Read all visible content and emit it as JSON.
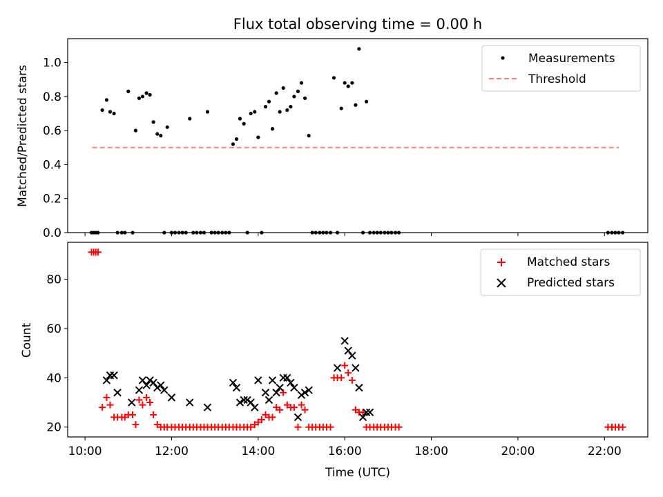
{
  "figure": {
    "title": "Flux total observing time = 0.00 h"
  },
  "chart_data": [
    {
      "type": "scatter",
      "title": "Flux total observing time = 0.00 h",
      "xlabel": "",
      "ylabel": "Matched/Predicted stars",
      "ylim": [
        0.0,
        1.14
      ],
      "yticks": [
        0.0,
        0.2,
        0.4,
        0.6,
        0.8,
        1.0
      ],
      "ytick_labels": [
        "0.0",
        "0.2",
        "0.4",
        "0.6",
        "0.8",
        "1.0"
      ],
      "xlim_hours": [
        9.6,
        23.0
      ],
      "x_unit": "hours UTC",
      "legend_position": "top-right",
      "legend": [
        "Measurements",
        "Threshold"
      ],
      "threshold": {
        "name": "Threshold",
        "value": 0.5,
        "x_start": 10.17,
        "x_end": 22.33,
        "color": "#ff7f7f",
        "style": "dashed"
      },
      "series": [
        {
          "name": "Measurements",
          "color": "#000000",
          "marker": "dot",
          "x": [
            10.15,
            10.2,
            10.25,
            10.3,
            10.4,
            10.5,
            10.58,
            10.67,
            10.75,
            10.85,
            10.92,
            11.0,
            11.1,
            11.17,
            11.25,
            11.33,
            11.42,
            11.5,
            11.58,
            11.67,
            11.75,
            11.83,
            11.9,
            12.0,
            12.08,
            12.17,
            12.25,
            12.33,
            12.42,
            12.5,
            12.58,
            12.67,
            12.75,
            12.83,
            12.92,
            13.0,
            13.08,
            13.17,
            13.25,
            13.33,
            13.42,
            13.5,
            13.58,
            13.67,
            13.75,
            13.83,
            13.92,
            14.0,
            14.08,
            14.17,
            14.25,
            14.33,
            14.42,
            14.5,
            14.58,
            14.67,
            14.75,
            14.83,
            14.92,
            15.0,
            15.08,
            15.17,
            15.25,
            15.33,
            15.42,
            15.5,
            15.58,
            15.67,
            15.75,
            15.83,
            15.92,
            16.0,
            16.08,
            16.17,
            16.25,
            16.33,
            16.42,
            16.5,
            16.58,
            16.67,
            16.75,
            16.83,
            16.92,
            17.0,
            17.08,
            17.17,
            17.25,
            22.08,
            22.17,
            22.25,
            22.33,
            22.42
          ],
          "y": [
            0.0,
            0.0,
            0.0,
            0.0,
            0.72,
            0.78,
            0.71,
            0.7,
            0.0,
            0.0,
            0.0,
            0.83,
            0.0,
            0.6,
            0.79,
            0.8,
            0.82,
            0.81,
            0.65,
            0.58,
            0.57,
            0.0,
            0.62,
            0.0,
            0.0,
            0.0,
            0.0,
            0.0,
            0.67,
            0.0,
            0.0,
            0.0,
            0.0,
            0.71,
            0.0,
            0.0,
            0.0,
            0.0,
            0.0,
            0.0,
            0.52,
            0.55,
            0.67,
            0.64,
            0.0,
            0.7,
            0.71,
            0.56,
            0.0,
            0.74,
            0.77,
            0.61,
            0.82,
            0.71,
            0.85,
            0.72,
            0.74,
            0.8,
            0.83,
            0.88,
            0.79,
            0.57,
            0.0,
            0.0,
            0.0,
            0.0,
            0.0,
            0.0,
            0.91,
            0.0,
            0.73,
            0.88,
            0.86,
            0.88,
            0.75,
            1.08,
            0.0,
            0.77,
            0.0,
            0.0,
            0.0,
            0.0,
            0.0,
            0.0,
            0.0,
            0.0,
            0.0,
            0.0,
            0.0,
            0.0,
            0.0,
            0.0
          ]
        }
      ]
    },
    {
      "type": "scatter",
      "title": "",
      "xlabel": "Time (UTC)",
      "ylabel": "Count",
      "ylim": [
        16.0,
        95.0
      ],
      "yticks": [
        20,
        40,
        60,
        80
      ],
      "ytick_labels": [
        "20",
        "40",
        "60",
        "80"
      ],
      "xlim_hours": [
        9.6,
        23.0
      ],
      "xticks_hours": [
        10,
        12,
        14,
        16,
        18,
        20,
        22
      ],
      "xtick_labels": [
        "10:00",
        "12:00",
        "14:00",
        "16:00",
        "18:00",
        "20:00",
        "22:00"
      ],
      "legend_position": "top-right",
      "legend": [
        "Matched stars",
        "Predicted stars"
      ],
      "series": [
        {
          "name": "Matched stars",
          "color": "#ff0000",
          "marker": "plus",
          "x": [
            10.15,
            10.2,
            10.25,
            10.3,
            10.4,
            10.5,
            10.58,
            10.67,
            10.75,
            10.85,
            10.92,
            11.0,
            11.1,
            11.17,
            11.25,
            11.33,
            11.42,
            11.5,
            11.58,
            11.67,
            11.75,
            11.83,
            11.9,
            12.0,
            12.08,
            12.17,
            12.25,
            12.33,
            12.42,
            12.5,
            12.58,
            12.67,
            12.75,
            12.83,
            12.92,
            13.0,
            13.08,
            13.17,
            13.25,
            13.33,
            13.42,
            13.5,
            13.58,
            13.67,
            13.75,
            13.83,
            13.92,
            14.0,
            14.08,
            14.17,
            14.25,
            14.33,
            14.42,
            14.5,
            14.58,
            14.67,
            14.75,
            14.83,
            14.92,
            15.0,
            15.08,
            15.17,
            15.25,
            15.33,
            15.42,
            15.5,
            15.58,
            15.67,
            15.75,
            15.83,
            15.92,
            16.0,
            16.08,
            16.17,
            16.25,
            16.33,
            16.42,
            16.5,
            16.58,
            16.67,
            16.75,
            16.83,
            16.92,
            17.0,
            17.08,
            17.17,
            17.25,
            22.08,
            22.17,
            22.25,
            22.33,
            22.42
          ],
          "y": [
            91,
            91,
            91,
            91,
            28,
            32,
            29,
            24,
            24,
            24,
            24,
            25,
            25,
            21,
            31,
            29,
            32,
            30,
            25,
            21,
            20,
            20,
            20,
            20,
            20,
            20,
            20,
            20,
            20,
            20,
            20,
            20,
            20,
            20,
            20,
            20,
            20,
            20,
            20,
            20,
            20,
            20,
            20,
            20,
            20,
            20,
            21,
            22,
            23,
            25,
            24,
            24,
            28,
            27,
            34,
            29,
            28,
            28,
            20,
            29,
            27,
            20,
            20,
            20,
            20,
            20,
            20,
            20,
            40,
            40,
            40,
            45,
            42,
            39,
            27,
            26,
            26,
            20,
            20,
            20,
            20,
            20,
            20,
            20,
            20,
            20,
            20,
            20,
            20,
            20,
            20,
            20
          ]
        },
        {
          "name": "Predicted stars",
          "color": "#000000",
          "marker": "x",
          "x": [
            10.5,
            10.58,
            10.67,
            10.75,
            11.08,
            11.25,
            11.33,
            11.42,
            11.5,
            11.58,
            11.67,
            11.75,
            11.83,
            12.0,
            12.42,
            12.83,
            13.42,
            13.5,
            13.58,
            13.67,
            13.75,
            13.83,
            13.92,
            14.0,
            14.17,
            14.25,
            14.33,
            14.42,
            14.5,
            14.58,
            14.67,
            14.75,
            14.83,
            14.92,
            15.0,
            15.08,
            15.17,
            15.83,
            16.0,
            16.08,
            16.17,
            16.25,
            16.33,
            16.42,
            16.5,
            16.58
          ],
          "y": [
            39,
            41,
            41,
            34,
            30,
            35,
            39,
            37,
            39,
            38,
            36,
            37,
            35,
            32,
            30,
            28,
            38,
            36,
            30,
            31,
            31,
            30,
            28,
            39,
            34,
            31,
            39,
            34,
            36,
            40,
            40,
            38,
            36,
            24,
            33,
            34,
            35,
            44,
            55,
            51,
            49,
            44,
            36,
            24,
            26,
            26
          ]
        }
      ]
    }
  ]
}
